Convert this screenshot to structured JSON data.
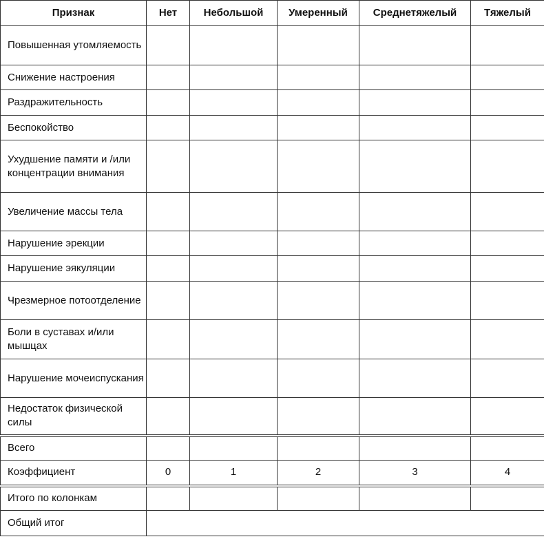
{
  "headers": [
    "Признак",
    "Нет",
    "Небольшой",
    "Умеренный",
    "Среднетяжелый",
    "Тяжелый"
  ],
  "symptoms": [
    "Повышенная утомляемость",
    "Снижение настроения",
    "Раздражительность",
    "Беспокойство",
    "Ухудшение памяти и /или концентрации внимания",
    "Увеличение массы тела",
    "Нарушение эрекции",
    "Нарушение эякуляции",
    "Чрезмерное потоотделение",
    "Боли в суставах и/или мышцах",
    "Нарушение мочеиспускания",
    "Недостаток физической силы"
  ],
  "total_label": "Всего",
  "coefficient_label": "Коэффициент",
  "coefficients": [
    "0",
    "1",
    "2",
    "3",
    "4"
  ],
  "column_totals_label": "Итого по колонкам",
  "grand_total_label": "Общий итог"
}
